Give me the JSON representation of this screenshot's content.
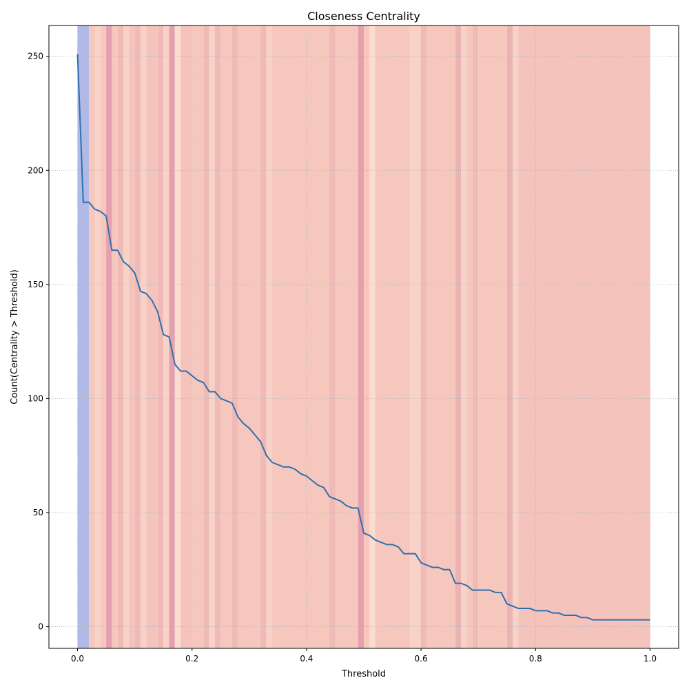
{
  "chart_data": {
    "type": "line",
    "title": "Closeness Centrality",
    "xlabel": "Threshold",
    "ylabel": "Count(Centrality > Threshold)",
    "xlim": [
      -0.05,
      1.05
    ],
    "ylim": [
      -9.5,
      263.5
    ],
    "x_ticks": [
      0.0,
      0.2,
      0.4,
      0.6,
      0.8,
      1.0
    ],
    "x_tick_labels": [
      "0.0",
      "0.2",
      "0.4",
      "0.6",
      "0.8",
      "1.0"
    ],
    "y_ticks": [
      0,
      50,
      100,
      150,
      200,
      250
    ],
    "y_tick_labels": [
      "0",
      "50",
      "100",
      "150",
      "200",
      "250"
    ],
    "grid": true,
    "line_color": "#2f6fb0",
    "series": [
      {
        "x": [
          0.0,
          0.01,
          0.02,
          0.03,
          0.04,
          0.05,
          0.06,
          0.07,
          0.08,
          0.09,
          0.1,
          0.11,
          0.12,
          0.13,
          0.14,
          0.15,
          0.16,
          0.17,
          0.18,
          0.19,
          0.2,
          0.21,
          0.22,
          0.23,
          0.24,
          0.25,
          0.26,
          0.27,
          0.28,
          0.29,
          0.3,
          0.31,
          0.32,
          0.33,
          0.34,
          0.35,
          0.36,
          0.37,
          0.38,
          0.39,
          0.4,
          0.41,
          0.42,
          0.43,
          0.44,
          0.45,
          0.46,
          0.47,
          0.48,
          0.49,
          0.5,
          0.51,
          0.52,
          0.53,
          0.54,
          0.55,
          0.56,
          0.57,
          0.58,
          0.59,
          0.6,
          0.61,
          0.62,
          0.63,
          0.64,
          0.65,
          0.66,
          0.67,
          0.68,
          0.69,
          0.7,
          0.71,
          0.72,
          0.73,
          0.74,
          0.75,
          0.76,
          0.77,
          0.78,
          0.79,
          0.8,
          0.81,
          0.82,
          0.83,
          0.84,
          0.85,
          0.86,
          0.87,
          0.88,
          0.89,
          0.9,
          0.91,
          0.92,
          0.93,
          0.94,
          0.95,
          0.96,
          0.97,
          0.98,
          0.99,
          1.0
        ],
        "y": [
          251,
          186,
          186,
          183,
          182,
          180,
          165,
          165,
          160,
          158,
          155,
          147,
          146,
          143,
          138,
          128,
          127,
          115,
          112,
          112,
          110,
          108,
          107,
          103,
          103,
          100,
          99,
          98,
          92,
          89,
          87,
          84,
          81,
          75,
          72,
          71,
          70,
          70,
          69,
          67,
          66,
          64,
          62,
          61,
          57,
          56,
          55,
          53,
          52,
          52,
          41,
          40,
          38,
          37,
          36,
          36,
          35,
          32,
          32,
          32,
          28,
          27,
          26,
          26,
          25,
          25,
          19,
          19,
          18,
          16,
          16,
          16,
          16,
          15,
          15,
          10,
          9,
          8,
          8,
          8,
          7,
          7,
          7,
          6,
          6,
          5,
          5,
          5,
          4,
          4,
          3,
          3,
          3,
          3,
          3,
          3,
          3,
          3,
          3,
          3,
          3
        ]
      }
    ],
    "background_bands": [
      {
        "from": 0.0,
        "to": 0.02,
        "color": "#b1b9e6"
      },
      {
        "from": 0.02,
        "to": 0.03,
        "color": "#f6c7bd"
      },
      {
        "from": 0.03,
        "to": 0.04,
        "color": "#f8d2c6"
      },
      {
        "from": 0.04,
        "to": 0.05,
        "color": "#f6c7bd"
      },
      {
        "from": 0.05,
        "to": 0.06,
        "color": "#e4a1ad"
      },
      {
        "from": 0.06,
        "to": 0.07,
        "color": "#f6c7bd"
      },
      {
        "from": 0.07,
        "to": 0.08,
        "color": "#f0bab6"
      },
      {
        "from": 0.08,
        "to": 0.09,
        "color": "#f8d2c6"
      },
      {
        "from": 0.09,
        "to": 0.1,
        "color": "#f4c3bb"
      },
      {
        "from": 0.1,
        "to": 0.11,
        "color": "#f0bab6"
      },
      {
        "from": 0.11,
        "to": 0.12,
        "color": "#f8d2c6"
      },
      {
        "from": 0.12,
        "to": 0.14,
        "color": "#f4c3bb"
      },
      {
        "from": 0.14,
        "to": 0.15,
        "color": "#f0bab6"
      },
      {
        "from": 0.15,
        "to": 0.16,
        "color": "#f8d2c6"
      },
      {
        "from": 0.16,
        "to": 0.17,
        "color": "#e4a1ad"
      },
      {
        "from": 0.17,
        "to": 0.18,
        "color": "#fbdcd2"
      },
      {
        "from": 0.18,
        "to": 0.2,
        "color": "#f4c3bb"
      },
      {
        "from": 0.2,
        "to": 0.22,
        "color": "#f6c7bd"
      },
      {
        "from": 0.22,
        "to": 0.23,
        "color": "#f0bab6"
      },
      {
        "from": 0.23,
        "to": 0.24,
        "color": "#f8d2c6"
      },
      {
        "from": 0.24,
        "to": 0.25,
        "color": "#f0bab6"
      },
      {
        "from": 0.25,
        "to": 0.27,
        "color": "#f6c7bd"
      },
      {
        "from": 0.27,
        "to": 0.28,
        "color": "#f0bab6"
      },
      {
        "from": 0.28,
        "to": 0.32,
        "color": "#f6c7bd"
      },
      {
        "from": 0.32,
        "to": 0.33,
        "color": "#f0bab6"
      },
      {
        "from": 0.33,
        "to": 0.34,
        "color": "#f8d2c6"
      },
      {
        "from": 0.34,
        "to": 0.44,
        "color": "#f6c7bd"
      },
      {
        "from": 0.44,
        "to": 0.45,
        "color": "#f0bab6"
      },
      {
        "from": 0.45,
        "to": 0.49,
        "color": "#f6c7bd"
      },
      {
        "from": 0.49,
        "to": 0.5,
        "color": "#e4a1ad"
      },
      {
        "from": 0.5,
        "to": 0.51,
        "color": "#f6c7bd"
      },
      {
        "from": 0.51,
        "to": 0.52,
        "color": "#fbdcd2"
      },
      {
        "from": 0.52,
        "to": 0.58,
        "color": "#f6c7bd"
      },
      {
        "from": 0.58,
        "to": 0.6,
        "color": "#f8d2c6"
      },
      {
        "from": 0.6,
        "to": 0.61,
        "color": "#f0bab6"
      },
      {
        "from": 0.61,
        "to": 0.66,
        "color": "#f6c7bd"
      },
      {
        "from": 0.66,
        "to": 0.67,
        "color": "#ecb3b3"
      },
      {
        "from": 0.67,
        "to": 0.68,
        "color": "#f8d2c6"
      },
      {
        "from": 0.68,
        "to": 0.69,
        "color": "#f6c7bd"
      },
      {
        "from": 0.69,
        "to": 0.7,
        "color": "#f0bab6"
      },
      {
        "from": 0.7,
        "to": 0.75,
        "color": "#f6c7bd"
      },
      {
        "from": 0.75,
        "to": 0.76,
        "color": "#ecb3b3"
      },
      {
        "from": 0.76,
        "to": 0.77,
        "color": "#f8d2c6"
      },
      {
        "from": 0.77,
        "to": 1.0,
        "color": "#f4c3bb"
      }
    ]
  }
}
